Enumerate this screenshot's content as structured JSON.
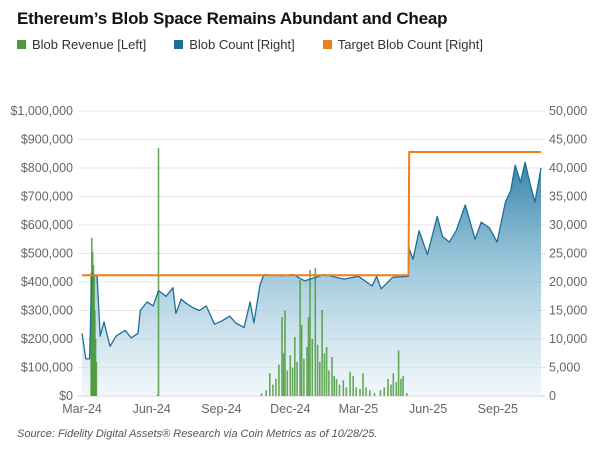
{
  "chart_data": {
    "type": "bar+area+line",
    "title": "Ethereum’s Blob Space Remains Abundant and Cheap",
    "legend_position": "top-left",
    "grid": true,
    "source": "Source: Fidelity Digital Assets® Research via Coin Metrics as of 10/28/25.",
    "x_range": [
      "2024-03-01",
      "2025-10-28"
    ],
    "x_ticks": [
      {
        "label": "Mar-24",
        "date": "2024-03-01"
      },
      {
        "label": "Jun-24",
        "date": "2024-06-01"
      },
      {
        "label": "Sep-24",
        "date": "2024-09-01"
      },
      {
        "label": "Dec-24",
        "date": "2024-12-01"
      },
      {
        "label": "Mar-25",
        "date": "2025-03-01"
      },
      {
        "label": "Jun-25",
        "date": "2025-06-01"
      },
      {
        "label": "Sep-25",
        "date": "2025-09-01"
      }
    ],
    "y_left": {
      "range": [
        0,
        1000000
      ],
      "ticks": [
        "$0",
        "$100,000",
        "$200,000",
        "$300,000",
        "$400,000",
        "$500,000",
        "$600,000",
        "$700,000",
        "$800,000",
        "$900,000",
        "$1,000,000"
      ]
    },
    "y_right": {
      "range": [
        0,
        50000
      ],
      "ticks": [
        "0",
        "5,000",
        "10,000",
        "15,000",
        "20,000",
        "25,000",
        "30,000",
        "35,000",
        "40,000",
        "45,000",
        "50,000"
      ]
    },
    "series": [
      {
        "name": "Blob Revenue [Left]",
        "type": "bar",
        "axis": "left",
        "color": "#4c9a3c",
        "points": [
          [
            "2024-03-13",
            430000
          ],
          [
            "2024-03-14",
            555000
          ],
          [
            "2024-03-15",
            505000
          ],
          [
            "2024-03-16",
            460000
          ],
          [
            "2024-03-17",
            420000
          ],
          [
            "2024-03-18",
            300000
          ],
          [
            "2024-03-19",
            200000
          ],
          [
            "2024-03-20",
            120000
          ],
          [
            "2024-06-09",
            5000
          ],
          [
            "2024-06-10",
            870000
          ],
          [
            "2024-10-24",
            10000
          ],
          [
            "2024-10-30",
            20000
          ],
          [
            "2024-11-04",
            80000
          ],
          [
            "2024-11-08",
            40000
          ],
          [
            "2024-11-12",
            60000
          ],
          [
            "2024-11-16",
            110000
          ],
          [
            "2024-11-20",
            277000
          ],
          [
            "2024-11-22",
            150000
          ],
          [
            "2024-11-24",
            300000
          ],
          [
            "2024-11-27",
            90000
          ],
          [
            "2024-12-01",
            143000
          ],
          [
            "2024-12-04",
            100000
          ],
          [
            "2024-12-07",
            207000
          ],
          [
            "2024-12-10",
            120000
          ],
          [
            "2024-12-14",
            407000
          ],
          [
            "2024-12-16",
            250000
          ],
          [
            "2024-12-19",
            130000
          ],
          [
            "2024-12-23",
            172000
          ],
          [
            "2024-12-25",
            277000
          ],
          [
            "2024-12-27",
            442000
          ],
          [
            "2024-12-30",
            200000
          ],
          [
            "2025-01-03",
            450000
          ],
          [
            "2025-01-06",
            180000
          ],
          [
            "2025-01-09",
            120000
          ],
          [
            "2025-01-12",
            302000
          ],
          [
            "2025-01-15",
            150000
          ],
          [
            "2025-01-18",
            172000
          ],
          [
            "2025-01-21",
            90000
          ],
          [
            "2025-01-25",
            137000
          ],
          [
            "2025-01-28",
            70000
          ],
          [
            "2025-01-31",
            60000
          ],
          [
            "2025-02-04",
            40000
          ],
          [
            "2025-02-09",
            55000
          ],
          [
            "2025-02-13",
            30000
          ],
          [
            "2025-02-18",
            85000
          ],
          [
            "2025-02-22",
            70000
          ],
          [
            "2025-02-26",
            30000
          ],
          [
            "2025-03-03",
            25000
          ],
          [
            "2025-03-07",
            80000
          ],
          [
            "2025-03-11",
            30000
          ],
          [
            "2025-03-16",
            20000
          ],
          [
            "2025-03-22",
            10000
          ],
          [
            "2025-03-30",
            20000
          ],
          [
            "2025-04-04",
            30000
          ],
          [
            "2025-04-09",
            60000
          ],
          [
            "2025-04-13",
            40000
          ],
          [
            "2025-04-16",
            80000
          ],
          [
            "2025-04-20",
            50000
          ],
          [
            "2025-04-23",
            160000
          ],
          [
            "2025-04-26",
            60000
          ],
          [
            "2025-04-29",
            70000
          ],
          [
            "2025-05-04",
            10000
          ]
        ]
      },
      {
        "name": "Blob Count [Right]",
        "type": "area",
        "axis": "right",
        "color": "#1b6f98",
        "points": [
          [
            "2024-03-01",
            11000
          ],
          [
            "2024-03-06",
            6500
          ],
          [
            "2024-03-11",
            6500
          ],
          [
            "2024-03-14",
            21500
          ],
          [
            "2024-03-21",
            21000
          ],
          [
            "2024-03-25",
            10500
          ],
          [
            "2024-03-30",
            13000
          ],
          [
            "2024-04-07",
            8700
          ],
          [
            "2024-04-15",
            10500
          ],
          [
            "2024-04-27",
            11500
          ],
          [
            "2024-05-05",
            10200
          ],
          [
            "2024-05-14",
            11000
          ],
          [
            "2024-05-17",
            15000
          ],
          [
            "2024-05-26",
            16500
          ],
          [
            "2024-06-03",
            15800
          ],
          [
            "2024-06-10",
            18500
          ],
          [
            "2024-06-20",
            17500
          ],
          [
            "2024-06-29",
            19000
          ],
          [
            "2024-07-03",
            14500
          ],
          [
            "2024-07-10",
            17000
          ],
          [
            "2024-07-16",
            16300
          ],
          [
            "2024-07-25",
            15500
          ],
          [
            "2024-08-03",
            15000
          ],
          [
            "2024-08-12",
            15800
          ],
          [
            "2024-08-23",
            12600
          ],
          [
            "2024-09-02",
            13200
          ],
          [
            "2024-09-12",
            14000
          ],
          [
            "2024-09-20",
            12800
          ],
          [
            "2024-10-01",
            12000
          ],
          [
            "2024-10-09",
            16500
          ],
          [
            "2024-10-14",
            12800
          ],
          [
            "2024-10-22",
            19500
          ],
          [
            "2024-10-27",
            21300
          ],
          [
            "2024-11-20",
            21100
          ],
          [
            "2024-12-05",
            21300
          ],
          [
            "2024-12-20",
            20200
          ],
          [
            "2025-01-15",
            21300
          ],
          [
            "2025-02-10",
            20500
          ],
          [
            "2025-03-01",
            21000
          ],
          [
            "2025-03-19",
            19300
          ],
          [
            "2025-03-25",
            21000
          ],
          [
            "2025-03-31",
            18800
          ],
          [
            "2025-04-15",
            20800
          ],
          [
            "2025-05-06",
            21000
          ],
          [
            "2025-05-07",
            25800
          ],
          [
            "2025-05-12",
            24000
          ],
          [
            "2025-05-20",
            29000
          ],
          [
            "2025-05-31",
            24800
          ],
          [
            "2025-06-13",
            31500
          ],
          [
            "2025-06-20",
            28000
          ],
          [
            "2025-06-29",
            27000
          ],
          [
            "2025-07-08",
            29000
          ],
          [
            "2025-07-20",
            33500
          ],
          [
            "2025-08-02",
            27500
          ],
          [
            "2025-08-10",
            30500
          ],
          [
            "2025-08-21",
            29500
          ],
          [
            "2025-08-31",
            27000
          ],
          [
            "2025-09-11",
            34000
          ],
          [
            "2025-09-18",
            36000
          ],
          [
            "2025-09-24",
            40500
          ],
          [
            "2025-10-01",
            37500
          ],
          [
            "2025-10-07",
            41000
          ],
          [
            "2025-10-14",
            37000
          ],
          [
            "2025-10-20",
            34000
          ],
          [
            "2025-10-28",
            40000
          ]
        ]
      },
      {
        "name": "Target Blob Count [Right]",
        "type": "line",
        "axis": "right",
        "color": "#ec7f1e",
        "points": [
          [
            "2024-03-01",
            21200
          ],
          [
            "2025-05-06",
            21200
          ],
          [
            "2025-05-07",
            42800
          ],
          [
            "2025-10-28",
            42800
          ]
        ]
      }
    ]
  }
}
